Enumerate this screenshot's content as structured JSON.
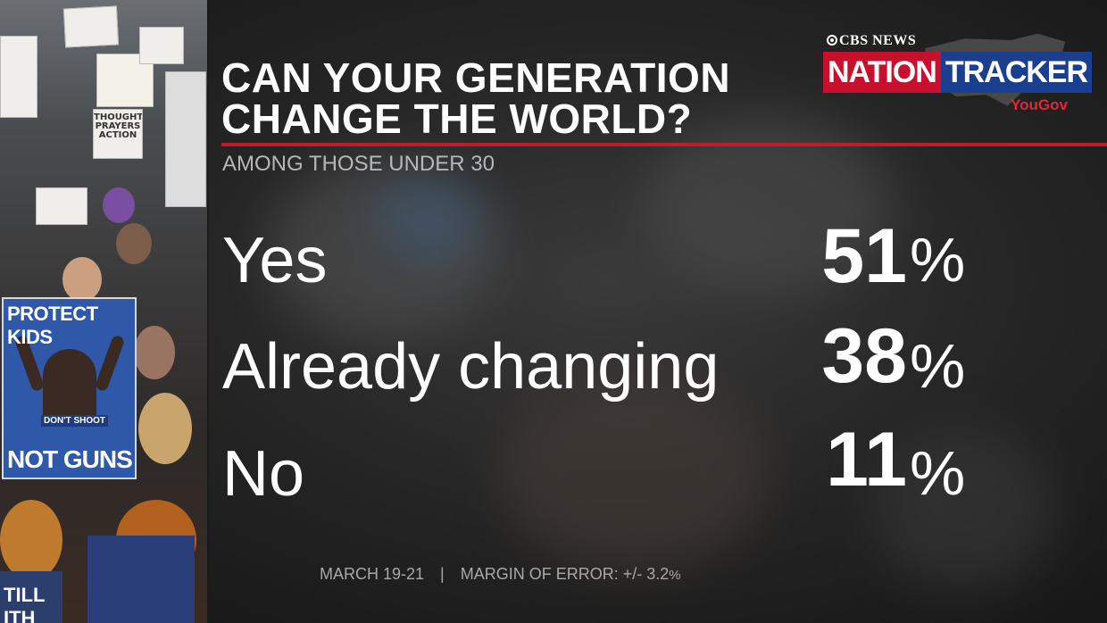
{
  "title_line1": "CAN YOUR GENERATION",
  "title_line2": "CHANGE THE WORLD?",
  "subtitle": "AMONG THOSE UNDER 30",
  "logo": {
    "network": "CBS NEWS",
    "word1": "NATION",
    "word2": "TRACKER",
    "partner": "YouGov"
  },
  "chart_data": {
    "type": "table",
    "title": "CAN YOUR GENERATION CHANGE THE WORLD?",
    "subtitle": "AMONG THOSE UNDER 30",
    "categories": [
      "Yes",
      "Already changing",
      "No"
    ],
    "values": [
      51,
      38,
      11
    ],
    "value_labels": [
      "51",
      "38",
      "11"
    ],
    "unit": "%"
  },
  "footer": {
    "dates": "MARCH 19-21",
    "separator": "|",
    "moe_label": "MARGIN OF ERROR: +/- ",
    "moe_value": "3.2",
    "moe_unit": "%"
  },
  "photo": {
    "poster_top": "PROTECT KIDS",
    "poster_middle": "DON'T SHOOT",
    "poster_bottom": "NOT GUNS",
    "sign_thoughts": "THOUGHTS PRAYERS ACTION",
    "sign_bottom": "TILL ITH"
  },
  "colors": {
    "accent_red": "#c01c2b",
    "nation_red": "#c8102e",
    "tracker_blue": "#1b3f8f",
    "text": "#ffffff",
    "muted": "#b7b7b7"
  }
}
